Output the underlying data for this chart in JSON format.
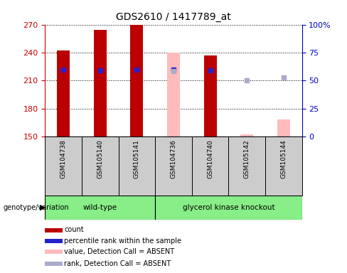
{
  "title": "GDS2610 / 1417789_at",
  "samples": [
    "GSM104738",
    "GSM105140",
    "GSM105141",
    "GSM104736",
    "GSM104740",
    "GSM105142",
    "GSM105144"
  ],
  "ylim_left": [
    150,
    270
  ],
  "ylim_right": [
    0,
    100
  ],
  "yticks_left": [
    150,
    180,
    210,
    240,
    270
  ],
  "yticks_right": [
    0,
    25,
    50,
    75,
    100
  ],
  "yticklabels_right": [
    "0",
    "25",
    "50",
    "75",
    "100%"
  ],
  "count_values": [
    242,
    264,
    270,
    null,
    237,
    null,
    null
  ],
  "count_color": "#bb0000",
  "percentile_values": [
    222,
    221,
    222,
    222,
    221,
    null,
    null
  ],
  "percentile_color": "#2222cc",
  "absent_value_values": [
    null,
    null,
    null,
    240,
    null,
    152,
    168
  ],
  "absent_value_color": "#ffbbbb",
  "absent_rank_values": [
    null,
    null,
    null,
    220,
    null,
    210,
    213
  ],
  "absent_rank_color": "#aaaacc",
  "bar_width": 0.35,
  "left_axis_color": "#cc0000",
  "right_axis_color": "#0000cc",
  "group_color": "#88ee88",
  "sample_bg_color": "#cccccc",
  "legend_items": [
    {
      "label": "count",
      "color": "#bb0000"
    },
    {
      "label": "percentile rank within the sample",
      "color": "#2222cc"
    },
    {
      "label": "value, Detection Call = ABSENT",
      "color": "#ffbbbb"
    },
    {
      "label": "rank, Detection Call = ABSENT",
      "color": "#aaaacc"
    }
  ]
}
